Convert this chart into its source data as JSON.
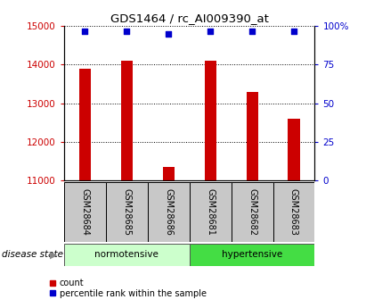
{
  "title": "GDS1464 / rc_AI009390_at",
  "samples": [
    "GSM28684",
    "GSM28685",
    "GSM28686",
    "GSM28681",
    "GSM28682",
    "GSM28683"
  ],
  "counts": [
    13900,
    14100,
    11350,
    14100,
    13300,
    12600
  ],
  "percentiles": [
    97,
    97,
    95,
    97,
    97,
    97
  ],
  "ylim_left": [
    11000,
    15000
  ],
  "ylim_right": [
    0,
    100
  ],
  "yticks_left": [
    11000,
    12000,
    13000,
    14000,
    15000
  ],
  "yticks_right": [
    0,
    25,
    50,
    75,
    100
  ],
  "bar_color": "#cc0000",
  "dot_color": "#0000cc",
  "groups": [
    {
      "label": "normotensive",
      "n": 3,
      "color": "#ccffcc"
    },
    {
      "label": "hypertensive",
      "n": 3,
      "color": "#44dd44"
    }
  ],
  "legend_items": [
    {
      "label": "count",
      "color": "#cc0000"
    },
    {
      "label": "percentile rank within the sample",
      "color": "#0000cc"
    }
  ],
  "tick_color_left": "#cc0000",
  "tick_color_right": "#0000cc",
  "sample_box_color": "#c8c8c8"
}
